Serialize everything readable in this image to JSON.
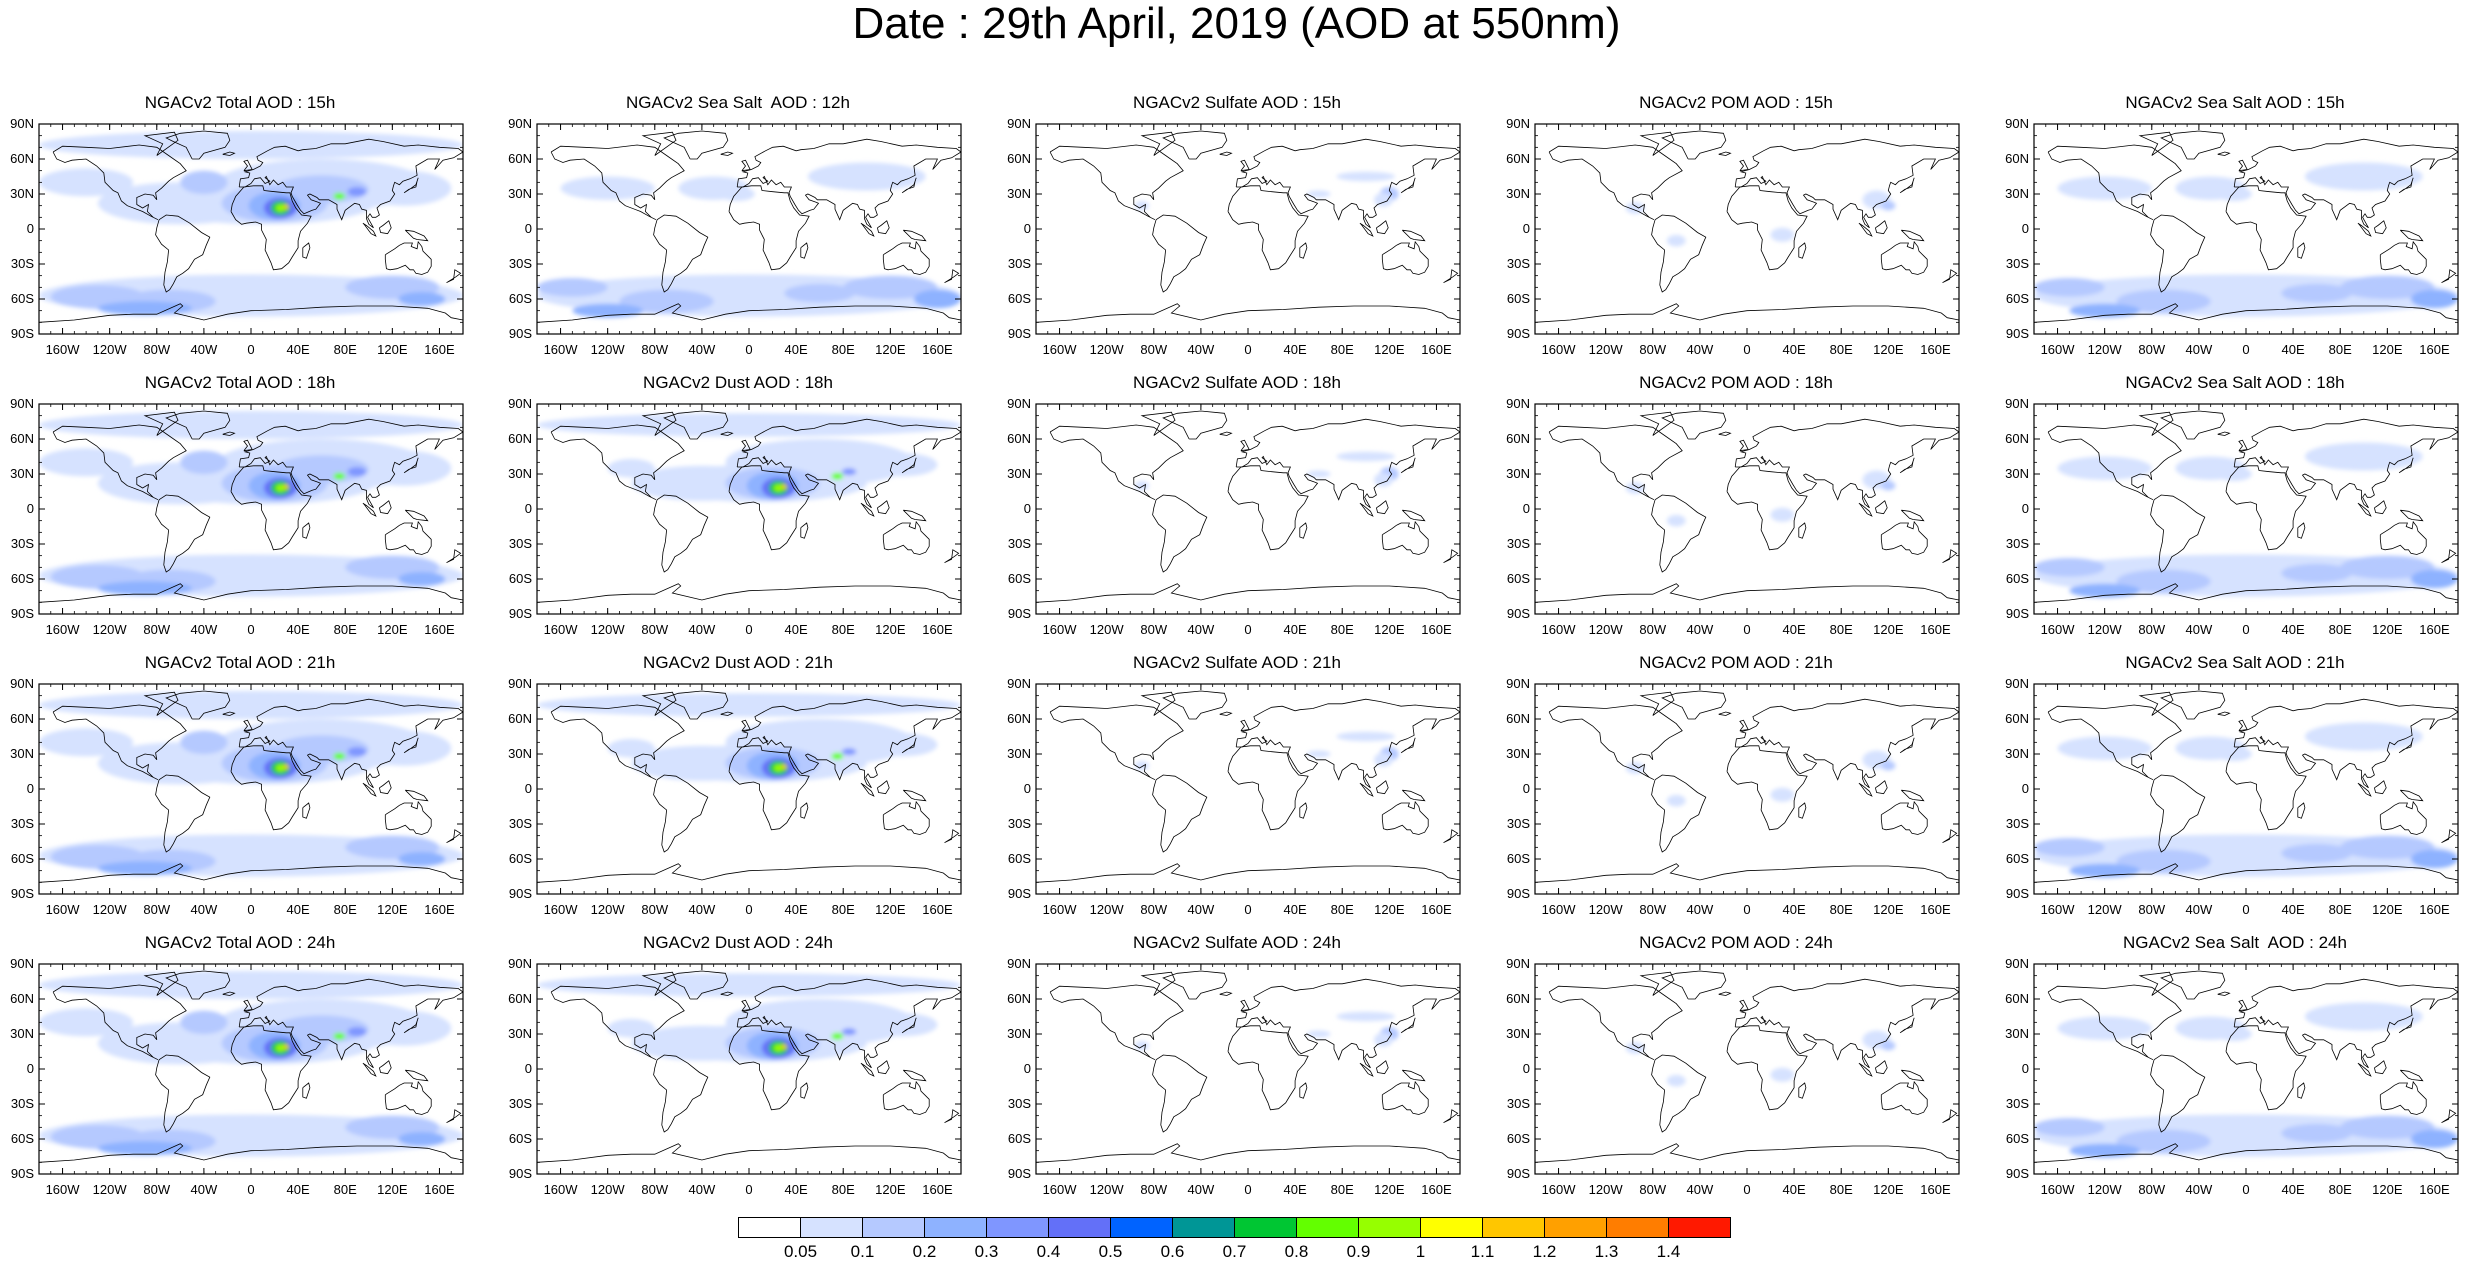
{
  "title": "Date : 29th April, 2019 (AOD at 550nm)",
  "lat_ticks": [
    "90N",
    "60N",
    "30N",
    "0",
    "30S",
    "60S",
    "90S"
  ],
  "lon_ticks": [
    "160W",
    "120W",
    "80W",
    "40W",
    "0",
    "40E",
    "80E",
    "120E",
    "160E"
  ],
  "panels": [
    {
      "title": "NGACv2 Total AOD : 15h",
      "variable": "Total",
      "hour": "15h"
    },
    {
      "title": "NGACv2 Sea Salt  AOD : 12h",
      "variable": "Sea Salt",
      "hour": "12h"
    },
    {
      "title": "NGACv2 Sulfate AOD : 15h",
      "variable": "Sulfate",
      "hour": "15h"
    },
    {
      "title": "NGACv2 POM AOD : 15h",
      "variable": "POM",
      "hour": "15h"
    },
    {
      "title": "NGACv2 Sea Salt AOD : 15h",
      "variable": "Sea Salt",
      "hour": "15h"
    },
    {
      "title": "NGACv2 Total AOD : 18h",
      "variable": "Total",
      "hour": "18h"
    },
    {
      "title": "NGACv2 Dust AOD : 18h",
      "variable": "Dust",
      "hour": "18h"
    },
    {
      "title": "NGACv2 Sulfate AOD : 18h",
      "variable": "Sulfate",
      "hour": "18h"
    },
    {
      "title": "NGACv2 POM AOD : 18h",
      "variable": "POM",
      "hour": "18h"
    },
    {
      "title": "NGACv2 Sea Salt AOD : 18h",
      "variable": "Sea Salt",
      "hour": "18h"
    },
    {
      "title": "NGACv2 Total AOD : 21h",
      "variable": "Total",
      "hour": "21h"
    },
    {
      "title": "NGACv2 Dust AOD : 21h",
      "variable": "Dust",
      "hour": "21h"
    },
    {
      "title": "NGACv2 Sulfate AOD : 21h",
      "variable": "Sulfate",
      "hour": "21h"
    },
    {
      "title": "NGACv2 POM AOD : 21h",
      "variable": "POM",
      "hour": "21h"
    },
    {
      "title": "NGACv2 Sea Salt AOD : 21h",
      "variable": "Sea Salt",
      "hour": "21h"
    },
    {
      "title": "NGACv2 Total AOD : 24h",
      "variable": "Total",
      "hour": "24h"
    },
    {
      "title": "NGACv2 Dust AOD : 24h",
      "variable": "Dust",
      "hour": "24h"
    },
    {
      "title": "NGACv2 Sulfate AOD : 24h",
      "variable": "Sulfate",
      "hour": "24h"
    },
    {
      "title": "NGACv2 POM AOD : 24h",
      "variable": "POM",
      "hour": "24h"
    },
    {
      "title": "NGACv2 Sea Salt  AOD : 24h",
      "variable": "Sea Salt",
      "hour": "24h"
    }
  ],
  "colorbar": {
    "labels": [
      "0.05",
      "0.1",
      "0.2",
      "0.3",
      "0.4",
      "0.5",
      "0.6",
      "0.7",
      "0.8",
      "0.9",
      "1",
      "1.1",
      "1.2",
      "1.3",
      "1.4"
    ],
    "colors": [
      "#ffffff",
      "#d6e2ff",
      "#b5c9ff",
      "#8eb2ff",
      "#7f96ff",
      "#6370f8",
      "#0063ff",
      "#009696",
      "#00c633",
      "#63ff00",
      "#96ff00",
      "#ffff00",
      "#ffc600",
      "#ffa000",
      "#ff7d00",
      "#ff1900"
    ]
  }
}
